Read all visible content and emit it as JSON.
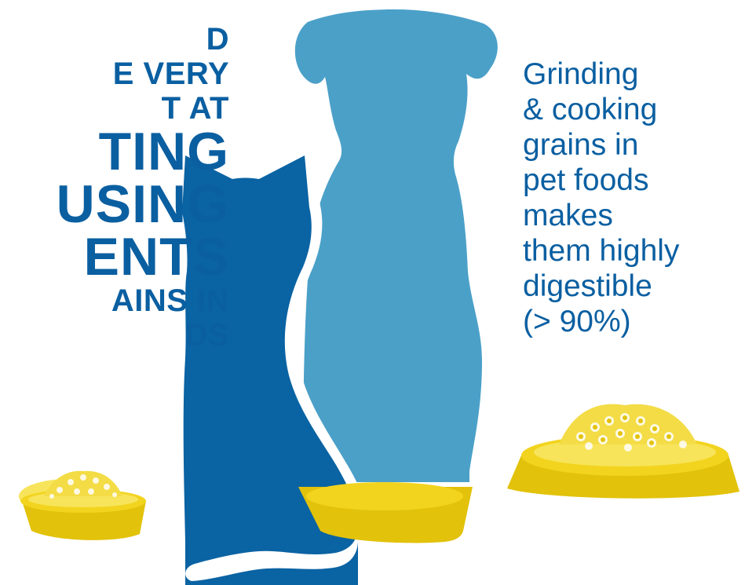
{
  "left_text": {
    "lines_small_top": [
      "D",
      "E VERY",
      "T AT"
    ],
    "lines_big": [
      "TING",
      "USING",
      "ENTS"
    ],
    "lines_small_bottom": [
      "AINS IN",
      "DS"
    ]
  },
  "right_text": {
    "lines": [
      "Grinding",
      "& cooking",
      "grains in",
      "pet foods",
      "makes",
      "them highly",
      "digestible",
      "(> 90%)"
    ]
  },
  "colors": {
    "cat": "#0a63a3",
    "dog": "#4ba0c8",
    "text": "#0a5fa1",
    "bowl": "#e2c20b",
    "bowl_rim": "#f2d41f",
    "kibble": "#f7e45a"
  },
  "illustration": {
    "silhouettes": [
      "cat-silhouette",
      "dog-silhouette"
    ],
    "bowls": [
      "small-food-bowl",
      "large-food-bowl"
    ]
  }
}
